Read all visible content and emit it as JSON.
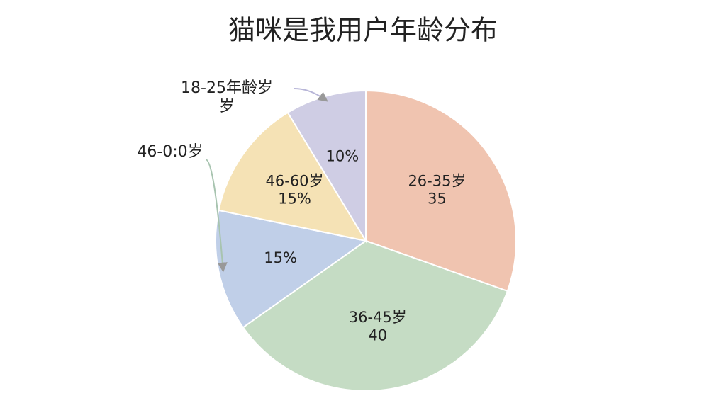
{
  "chart_data": {
    "type": "pie",
    "title": "猫咪是我用户年龄分布",
    "categories": [
      "26-35岁",
      "36-45岁",
      null,
      "46-60岁",
      null
    ],
    "values": [
      35,
      40,
      15,
      15,
      10
    ],
    "value_labels": [
      "35",
      "40",
      "15%",
      "15%",
      "10%"
    ],
    "colors": [
      "#f0c4b0",
      "#c5dcc4",
      "#c0cfe8",
      "#f5e2b5",
      "#cfcde4"
    ],
    "annotations": [
      "18-25年龄岁\n岁",
      "46-0:0岁"
    ]
  }
}
